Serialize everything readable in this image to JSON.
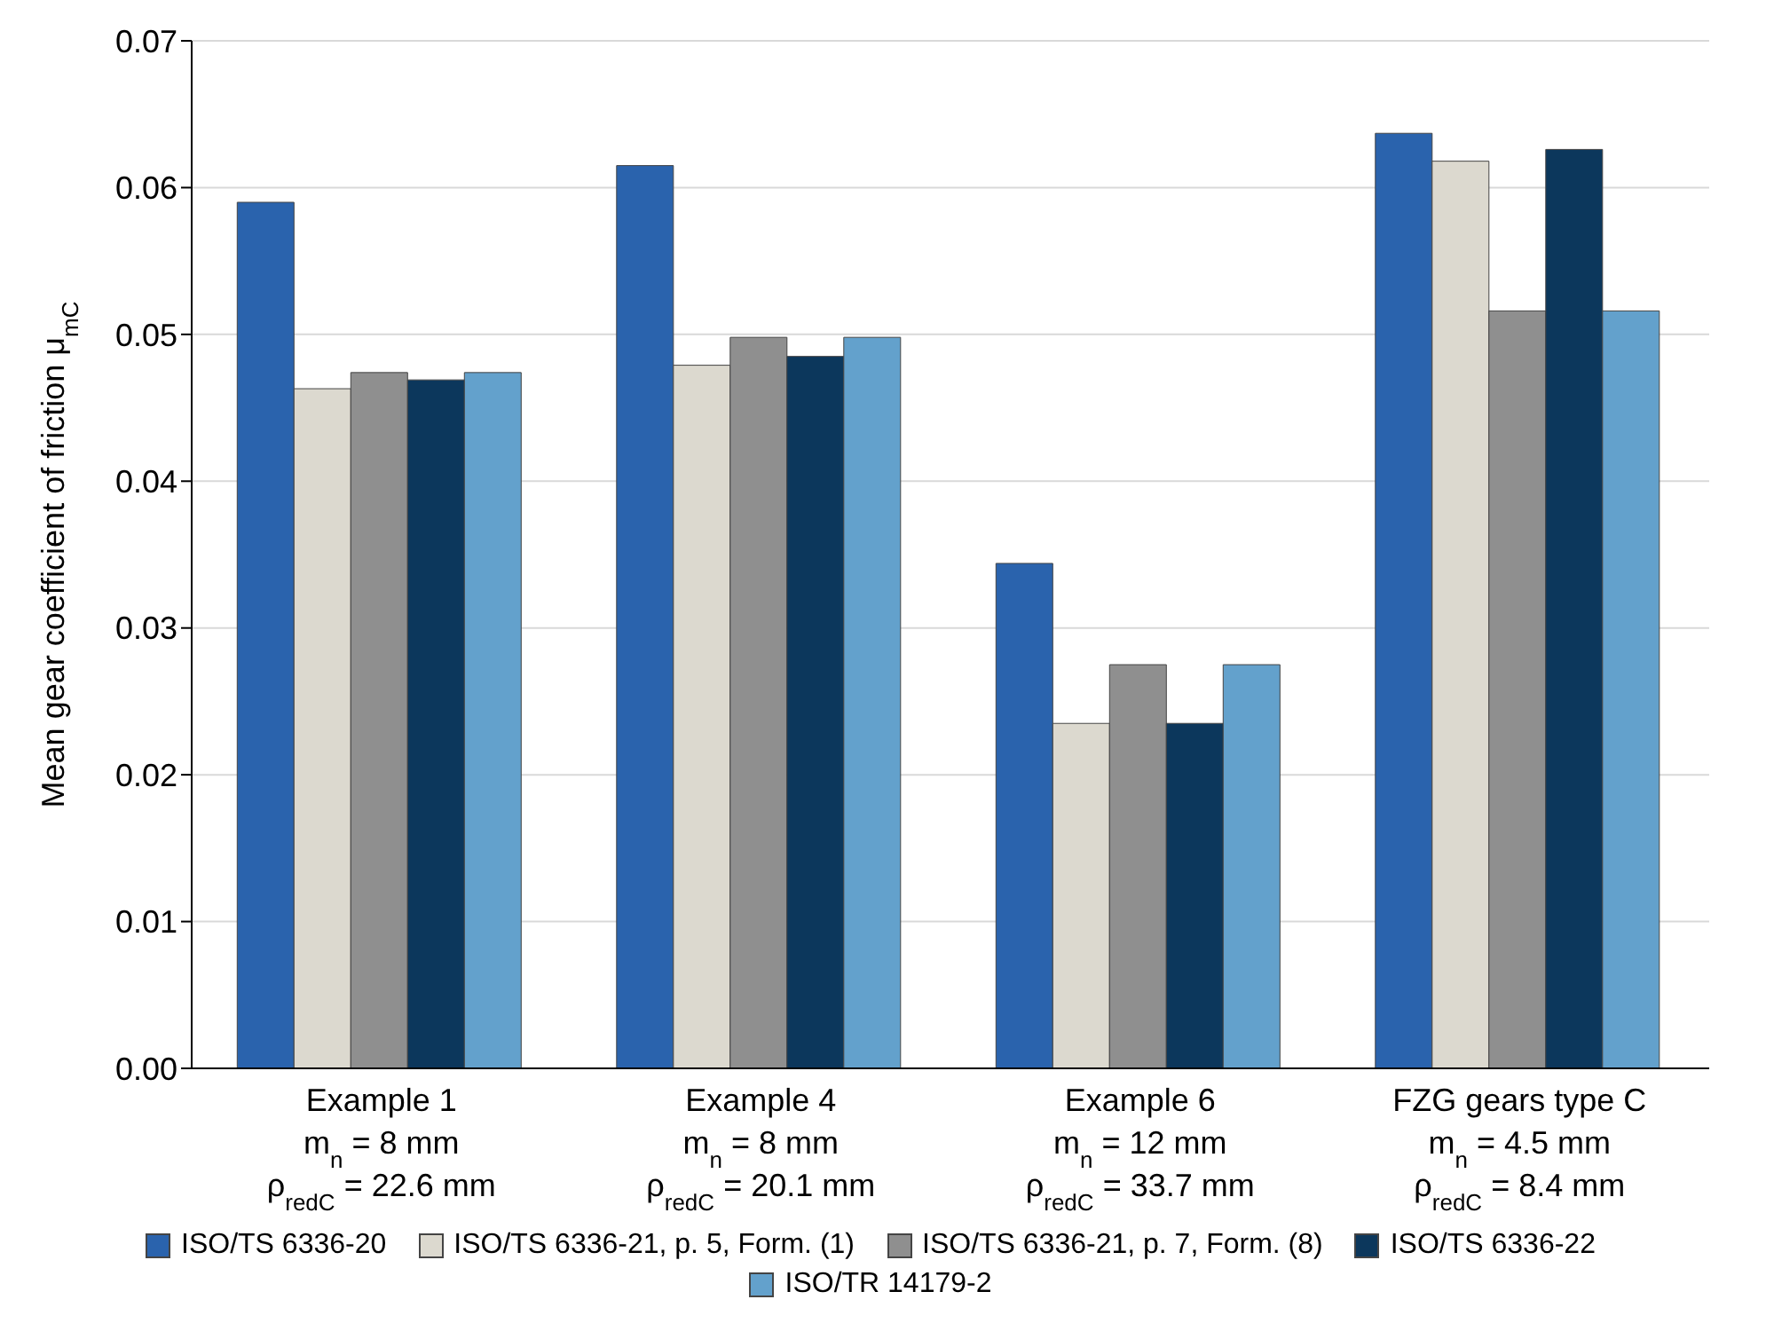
{
  "chart_data": {
    "type": "bar",
    "ylabel": "Mean gear coefficient of friction μ$_{mC}$",
    "categories": [
      "Example 1\nm$_{n}$ = 8 mm\nρ$_{redC}$ = 22.6 mm",
      "Example 4\nm$_{n}$ = 8 mm\nρ$_{redC}$ = 20.1 mm",
      "Example 6\nm$_{n}$ = 12 mm\nρ$_{redC}$ = 33.7 mm",
      "FZG gears type C\nm$_{n}$ = 4.5 mm\nρ$_{redC}$ = 8.4 mm"
    ],
    "series": [
      {
        "name": "ISO/TS 6336-20",
        "color": "#2a63ad",
        "values": [
          0.059,
          0.0615,
          0.0344,
          0.0637
        ]
      },
      {
        "name": "ISO/TS 6336-21, p. 5, Form. (1)",
        "color": "#dcd9cf",
        "values": [
          0.0463,
          0.0479,
          0.0235,
          0.0618
        ]
      },
      {
        "name": "ISO/TS 6336-21, p. 7, Form. (8)",
        "color": "#8f8f8f",
        "values": [
          0.0474,
          0.0498,
          0.0275,
          0.0516
        ]
      },
      {
        "name": "ISO/TS 6336-22",
        "color": "#0c375c",
        "values": [
          0.0469,
          0.0485,
          0.0235,
          0.0626
        ]
      },
      {
        "name": "ISO/TR 14179-2",
        "color": "#63a1cc",
        "values": [
          0.0474,
          0.0498,
          0.0275,
          0.0516
        ]
      }
    ],
    "ylim": [
      0,
      0.07
    ],
    "yticks": [
      {
        "value": 0,
        "label": "0.00"
      },
      0.01,
      0.02,
      0.03,
      0.04,
      0.05,
      0.06,
      0.07
    ],
    "grid": "y",
    "legend": "bottom"
  }
}
